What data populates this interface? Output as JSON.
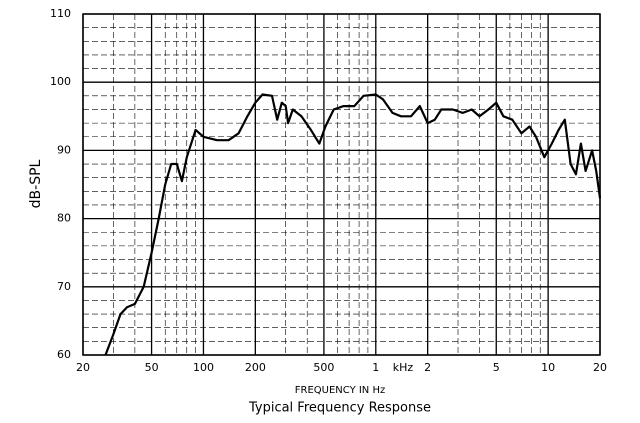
{
  "chart_data": {
    "type": "line",
    "title": "Typical Frequency Response",
    "x_label": "FREQUENCY IN Hz",
    "y_label": "dB-SPL",
    "annotation": "kHz",
    "x_log": true,
    "grid": true,
    "xlim": [
      20,
      20000
    ],
    "ylim": [
      60,
      110
    ],
    "xticks": [
      20,
      50,
      100,
      200,
      500,
      {
        "value": 1000,
        "label": "1"
      },
      {
        "value": 2000,
        "label": "2"
      },
      {
        "value": 5000,
        "label": "5"
      },
      {
        "value": 10000,
        "label": "10"
      },
      {
        "value": 20000,
        "label": "20"
      }
    ],
    "yticks": [
      60,
      70,
      80,
      90,
      100,
      110
    ],
    "minor_xticks": [
      30,
      40,
      60,
      70,
      80,
      90,
      300,
      400,
      600,
      700,
      800,
      900,
      3000,
      4000,
      6000,
      7000,
      8000,
      9000
    ],
    "minor_yticks": [
      62,
      64,
      66,
      68,
      72,
      74,
      76,
      78,
      82,
      84,
      86,
      88,
      92,
      94,
      96,
      98,
      102,
      104,
      106,
      108
    ],
    "series": [
      {
        "name": "Response",
        "color": "#000000",
        "x": [
          27,
          30,
          33,
          36,
          40,
          45,
          50,
          55,
          60,
          65,
          70,
          75,
          80,
          90,
          100,
          120,
          140,
          160,
          180,
          200,
          220,
          250,
          268,
          285,
          300,
          310,
          330,
          370,
          420,
          470,
          510,
          570,
          650,
          750,
          850,
          1000,
          1100,
          1250,
          1400,
          1600,
          1800,
          2000,
          2200,
          2400,
          2800,
          3200,
          3600,
          4000,
          4500,
          5000,
          5500,
          6200,
          7000,
          7800,
          8500,
          9500,
          10500,
          11500,
          12500,
          13500,
          14500,
          15500,
          16500,
          18000,
          19000,
          20000
        ],
        "values": [
          60,
          63,
          66,
          67,
          67.5,
          70,
          75,
          80,
          85,
          88,
          88,
          85.5,
          89,
          93,
          92,
          91.5,
          91.5,
          92.5,
          95,
          97,
          98.2,
          98,
          94.5,
          97,
          96.5,
          94,
          96,
          95,
          93,
          91,
          93.5,
          96,
          96.5,
          96.5,
          98,
          98.2,
          97.5,
          95.5,
          95,
          95,
          96.5,
          94,
          94.5,
          96,
          96,
          95.5,
          96,
          95,
          96,
          97,
          95,
          94.5,
          92.5,
          93.5,
          92,
          89,
          91,
          93,
          94.5,
          88,
          86.5,
          91,
          87,
          90,
          87,
          83
        ]
      }
    ]
  }
}
